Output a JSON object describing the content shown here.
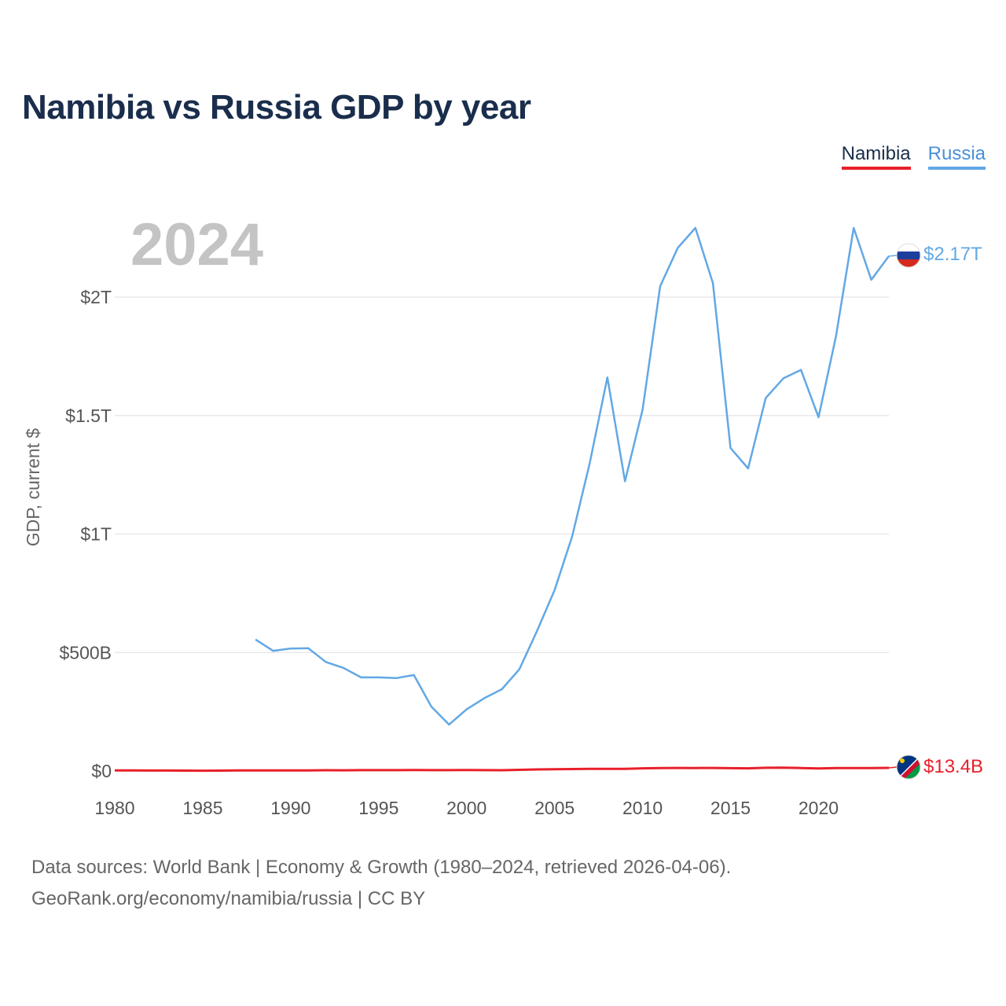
{
  "chart_data": {
    "type": "line",
    "title": "Namibia vs Russia GDP by year",
    "current_year_label": "2024",
    "xlabel": "",
    "ylabel": "GDP, current $",
    "xlim": [
      1980,
      2024
    ],
    "ylim": [
      0,
      2300
    ],
    "y_unit": "billions of current US$",
    "x_ticks": [
      1980,
      1985,
      1990,
      1995,
      2000,
      2005,
      2010,
      2015,
      2020
    ],
    "x_tick_labels": [
      "1980",
      "1985",
      "1990",
      "1995",
      "2000",
      "2005",
      "2010",
      "2015",
      "2020"
    ],
    "y_ticks": [
      0,
      500,
      1000,
      1500,
      2000
    ],
    "y_tick_labels": [
      "$0",
      "$500B",
      "$1T",
      "$1.5T",
      "$2T"
    ],
    "grid": true,
    "legend_position": "top-right",
    "series": [
      {
        "name": "Namibia",
        "color": "#e8202a",
        "end_label": "$13.4B",
        "x": [
          1980,
          1981,
          1982,
          1983,
          1984,
          1985,
          1986,
          1987,
          1988,
          1989,
          1990,
          1991,
          1992,
          1993,
          1994,
          1995,
          1996,
          1997,
          1998,
          1999,
          2000,
          2001,
          2002,
          2003,
          2004,
          2005,
          2006,
          2007,
          2008,
          2009,
          2010,
          2011,
          2012,
          2013,
          2014,
          2015,
          2016,
          2017,
          2018,
          2019,
          2020,
          2021,
          2022,
          2023,
          2024
        ],
        "values": [
          2.4,
          2.3,
          2.1,
          1.9,
          1.7,
          1.4,
          1.8,
          2.2,
          2.5,
          2.6,
          2.6,
          2.8,
          3.2,
          3.1,
          3.5,
          3.7,
          3.8,
          4.0,
          3.7,
          3.5,
          3.9,
          3.5,
          3.4,
          4.9,
          6.6,
          7.3,
          8.2,
          9.0,
          8.8,
          9.0,
          11.3,
          12.4,
          13.0,
          12.7,
          12.9,
          11.9,
          11.2,
          13.6,
          14.1,
          12.7,
          10.7,
          12.3,
          12.6,
          12.4,
          13.4
        ]
      },
      {
        "name": "Russia",
        "color": "#62a8e5",
        "end_label": "$2.17T",
        "x": [
          1988,
          1989,
          1990,
          1991,
          1992,
          1993,
          1994,
          1995,
          1996,
          1997,
          1998,
          1999,
          2000,
          2001,
          2002,
          2003,
          2004,
          2005,
          2006,
          2007,
          2008,
          2009,
          2010,
          2011,
          2012,
          2013,
          2014,
          2015,
          2016,
          2017,
          2018,
          2019,
          2020,
          2021,
          2022,
          2023,
          2024
        ],
        "values": [
          555,
          507,
          517,
          518,
          460,
          435,
          395,
          395,
          392,
          405,
          271,
          196,
          260,
          307,
          345,
          430,
          591,
          764,
          990,
          1300,
          1661,
          1223,
          1525,
          2046,
          2208,
          2292,
          2059,
          1363,
          1277,
          1574,
          1657,
          1693,
          1493,
          1837,
          2292,
          2073,
          2173
        ]
      }
    ],
    "footer_lines": [
      "Data sources: World Bank | Economy & Growth (1980–2024, retrieved 2026-04-06).",
      "GeoRank.org/economy/namibia/russia | CC BY"
    ]
  },
  "legend": {
    "namibia_label": "Namibia",
    "russia_label": "Russia"
  },
  "flags": {
    "russia": "russia-flag-icon",
    "namibia": "namibia-flag-icon"
  }
}
